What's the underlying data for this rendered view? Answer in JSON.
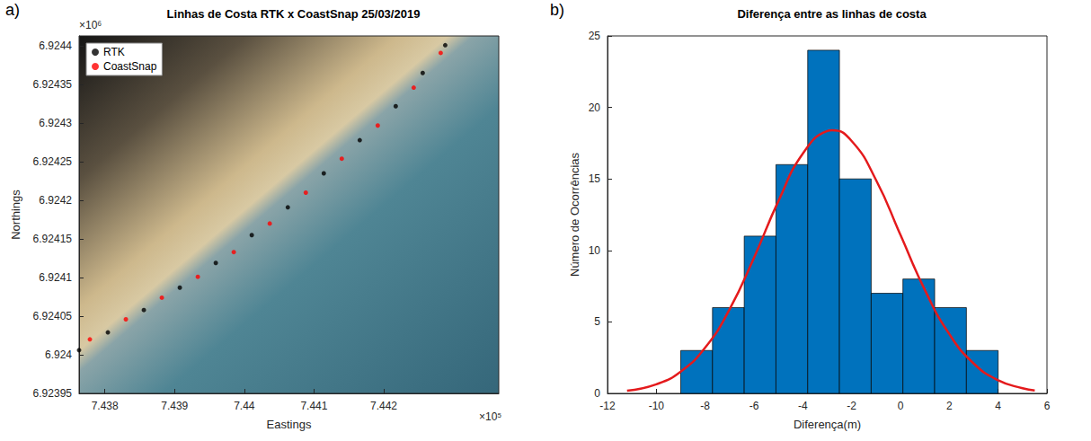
{
  "chart_data": [
    {
      "type": "scatter",
      "panel_label": "a)",
      "title": "Linhas de Costa RTK x CoastSnap 25/03/2019",
      "xlabel": "Eastings",
      "ylabel": "Northings",
      "x_multiplier": "×10⁵",
      "y_multiplier": "×10⁶",
      "xlim": [
        7.43763,
        7.44365
      ],
      "xticks": [
        7.438,
        7.439,
        7.44,
        7.441,
        7.442
      ],
      "ylim": [
        6.92395,
        6.924413
      ],
      "yticks": [
        6.92395,
        6.924,
        6.92405,
        6.9241,
        6.92415,
        6.9242,
        6.92425,
        6.9243,
        6.92435,
        6.9244
      ],
      "grid": false,
      "legend": "upper left",
      "marker": "circle",
      "series": [
        {
          "name": "RTK",
          "color": "#000000",
          "x": [
            7.43763,
            7.438043,
            7.438559,
            7.439075,
            7.439591,
            7.440107,
            7.440624,
            7.44114,
            7.441656,
            7.442172,
            7.442559,
            7.442882
          ],
          "values": [
            6.924006,
            6.924029,
            6.924058,
            6.924087,
            6.924119,
            6.924155,
            6.924191,
            6.924235,
            6.924278,
            6.924322,
            6.924365,
            6.924401
          ]
        },
        {
          "name": "CoastSnap",
          "color": "#ff0000",
          "x": [
            7.437785,
            7.438301,
            7.438817,
            7.439333,
            7.439849,
            7.440365,
            7.440882,
            7.441398,
            7.441914,
            7.44243,
            7.442817
          ],
          "values": [
            6.92402,
            6.924046,
            6.924074,
            6.924101,
            6.924133,
            6.92417,
            6.92421,
            6.924254,
            6.924297,
            6.924346,
            6.924391
          ]
        }
      ]
    },
    {
      "type": "histogram",
      "panel_label": "b)",
      "title": "Diferença entre as linhas de costa",
      "xlabel": "Diferença(m)",
      "ylabel": "Número de Ocorrências",
      "xlim": [
        -12,
        6
      ],
      "xticks": [
        -12,
        -10,
        -8,
        -6,
        -4,
        -2,
        0,
        2,
        4,
        6
      ],
      "ylim": [
        0,
        25
      ],
      "yticks": [
        0,
        5,
        10,
        15,
        20,
        25
      ],
      "grid": false,
      "color": "#0072bd",
      "bins": [
        -9,
        -7.7,
        -6.4,
        -5.1,
        -3.8,
        -2.5,
        -1.2,
        0.1,
        1.4,
        2.7,
        4
      ],
      "values": [
        3,
        6,
        11,
        16,
        24,
        15,
        7,
        8,
        6,
        3
      ],
      "fit": {
        "type": "line",
        "color": "#e41a1c",
        "x": [
          -11.2,
          -10,
          -9,
          -8,
          -7,
          -6,
          -5,
          -4,
          -3,
          -2.8,
          -2,
          -1,
          0,
          1,
          2,
          3,
          4,
          5,
          5.5
        ],
        "values": [
          0.19,
          0.64,
          1.53,
          3.2,
          5.88,
          9.49,
          13.45,
          16.77,
          18.35,
          18.4,
          17.65,
          14.92,
          11.08,
          7.23,
          4.15,
          2.09,
          0.92,
          0.36,
          0.21
        ]
      }
    }
  ]
}
